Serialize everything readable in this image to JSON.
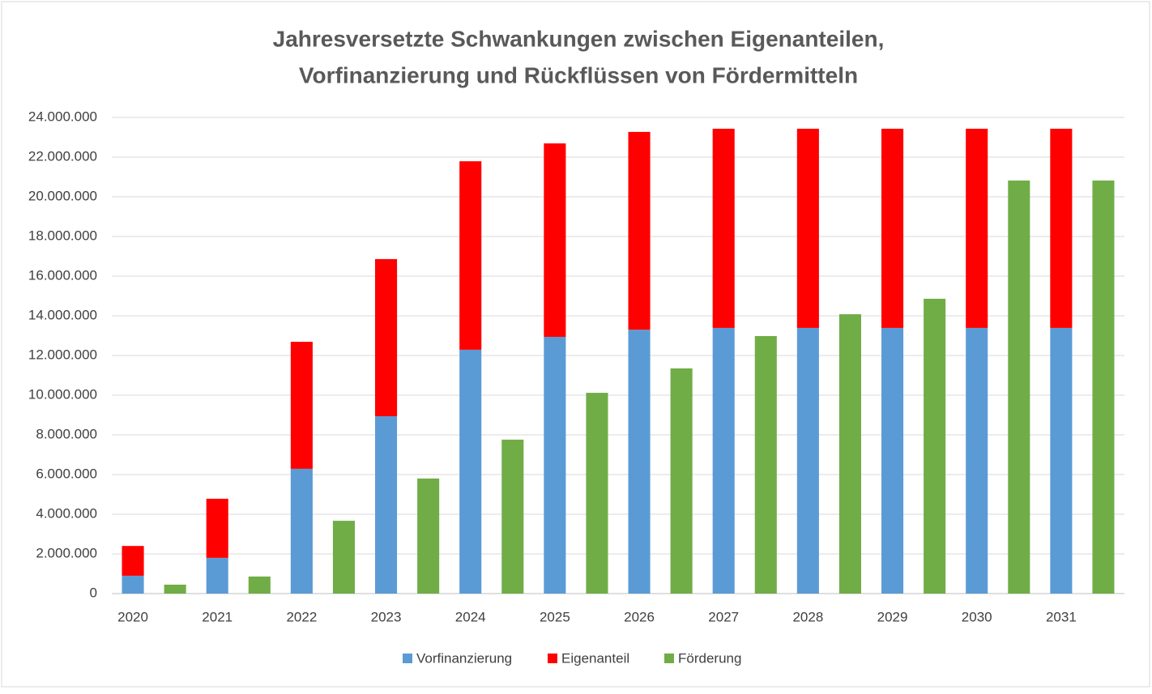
{
  "chart_data": {
    "type": "stacked_bar",
    "title": [
      "Jahresversetzte Schwankungen zwischen Eigenanteilen,",
      "Vorfinanzierung und Rückflüssen von Fördermitteln"
    ],
    "categories": [
      "2020",
      null,
      "2021",
      null,
      "2022",
      null,
      "2023",
      null,
      "2024",
      null,
      "2025",
      null,
      "2026",
      null,
      "2027",
      null,
      "2028",
      null,
      "2029",
      null,
      "2030",
      null,
      "2031",
      null
    ],
    "series": [
      {
        "name": "Vorfinanzierung",
        "color": "#5b9bd5",
        "values": [
          900000,
          null,
          1800000,
          null,
          6290000,
          null,
          8940000,
          null,
          12290000,
          null,
          12940000,
          null,
          13300000,
          null,
          13390000,
          null,
          13390000,
          null,
          13390000,
          null,
          13390000,
          null,
          13390000,
          null
        ]
      },
      {
        "name": "Eigenanteil",
        "color": "#ff0000",
        "values": [
          1500000,
          null,
          2980000,
          null,
          6400000,
          null,
          7920000,
          null,
          9500000,
          null,
          9750000,
          null,
          9970000,
          null,
          10040000,
          null,
          10040000,
          null,
          10040000,
          null,
          10040000,
          null,
          10040000,
          null
        ]
      },
      {
        "name": "Förderung",
        "color": "#70ad47",
        "values": [
          null,
          450000,
          null,
          860000,
          null,
          3670000,
          null,
          5800000,
          null,
          7760000,
          null,
          10120000,
          null,
          11350000,
          null,
          12980000,
          null,
          14080000,
          null,
          14860000,
          null,
          20820000,
          null,
          20820000
        ]
      }
    ],
    "ylim": [
      0,
      24000000
    ],
    "yticks": [
      0,
      {
        "value": 2000000,
        "label": "2.000.000"
      },
      {
        "value": 4000000,
        "label": "4.000.000"
      },
      {
        "value": 6000000,
        "label": "6.000.000"
      },
      {
        "value": 8000000,
        "label": "8.000.000"
      },
      {
        "value": 10000000,
        "label": "10.000.000"
      },
      {
        "value": 12000000,
        "label": "12.000.000"
      },
      {
        "value": 14000000,
        "label": "14.000.000"
      },
      {
        "value": 16000000,
        "label": "16.000.000"
      },
      {
        "value": 18000000,
        "label": "18.000.000"
      },
      {
        "value": 20000000,
        "label": "20.000.000"
      },
      {
        "value": 22000000,
        "label": "22.000.000"
      },
      {
        "value": 24000000,
        "label": "24.000.000"
      }
    ],
    "grid": true,
    "legend": "bottom"
  }
}
